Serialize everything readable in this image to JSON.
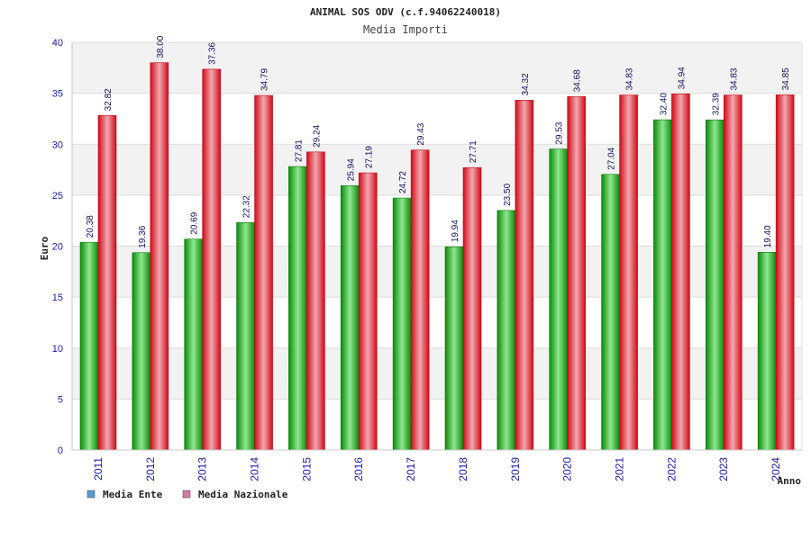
{
  "chart_data": {
    "type": "bar",
    "title": "ANIMAL SOS ODV (c.f.94062240018)",
    "subtitle": "Media Importi",
    "xlabel": "Anno",
    "ylabel": "Euro",
    "ylim": [
      0,
      40
    ],
    "yticks": [
      "0",
      "5",
      "10",
      "15",
      "20",
      "25",
      "30",
      "35",
      "40"
    ],
    "grid": true,
    "legend_position": "bottom-left",
    "categories": [
      "2011",
      "2012",
      "2013",
      "2014",
      "2015",
      "2016",
      "2017",
      "2018",
      "2019",
      "2020",
      "2021",
      "2022",
      "2023",
      "2024"
    ],
    "series": [
      {
        "name": "Media Ente",
        "color": "#0a9a0a",
        "legend_color": "#5b9bd5",
        "values": [
          20.38,
          19.36,
          20.69,
          22.32,
          27.81,
          25.94,
          24.72,
          19.94,
          23.5,
          29.53,
          27.04,
          32.4,
          32.39,
          19.4
        ],
        "labels": [
          "20.38",
          "19.36",
          "20.69",
          "22.32",
          "27.81",
          "25.94",
          "24.72",
          "19.94",
          "23.50",
          "29.53",
          "27.04",
          "32.40",
          "32.39",
          "19.40"
        ]
      },
      {
        "name": "Media Nazionale",
        "color": "#e01020",
        "legend_color": "#d47aa8",
        "values": [
          32.82,
          38.0,
          37.36,
          34.79,
          29.24,
          27.19,
          29.43,
          27.71,
          34.32,
          34.68,
          34.83,
          34.94,
          34.83,
          34.85
        ],
        "labels": [
          "32.82",
          "38.00",
          "37.36",
          "34.79",
          "29.24",
          "27.19",
          "29.43",
          "27.71",
          "34.32",
          "34.68",
          "34.83",
          "34.94",
          "34.83",
          "34.85"
        ]
      }
    ]
  }
}
